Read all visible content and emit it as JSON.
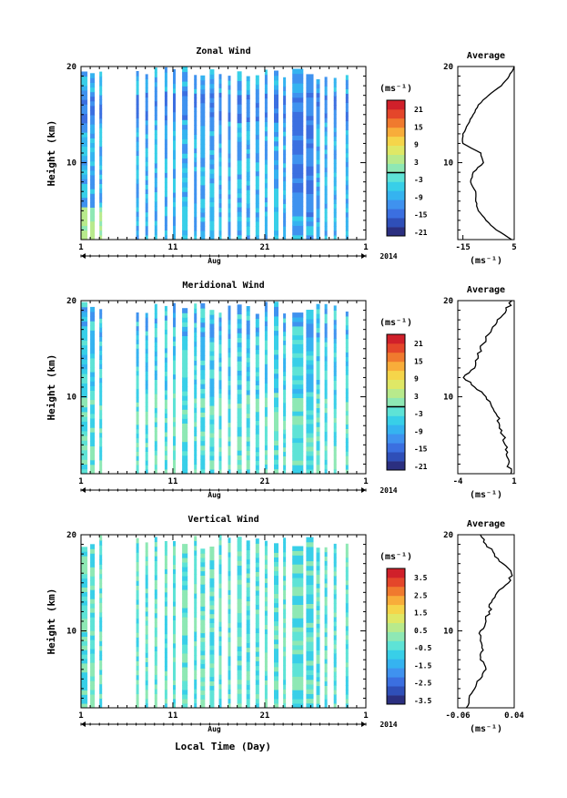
{
  "colorscale": [
    "#2b2f80",
    "#2f4fb8",
    "#3b6fe0",
    "#3f92ef",
    "#35b3f0",
    "#38cfe8",
    "#5ee3d6",
    "#8ee8b4",
    "#b8ea8c",
    "#dfe866",
    "#f5d54a",
    "#f8ad3a",
    "#f07a2e",
    "#e4462a",
    "#d0202a"
  ],
  "x_axis": {
    "ticks": [
      "1",
      "11",
      "21",
      "1"
    ],
    "month": "Aug",
    "year": "2014",
    "xlabel": "Local Time (Day)",
    "day_range": [
      1,
      32
    ]
  },
  "panels": [
    {
      "title": "Zonal Wind",
      "ylabel": "Height (km)",
      "yticks": [
        "20",
        "10"
      ],
      "ylim": [
        2,
        20
      ],
      "colorbar": {
        "unit": "(ms⁻¹)",
        "labels": [
          "21",
          "15",
          "9",
          "3",
          "-3",
          "-9",
          "-15",
          "-21"
        ],
        "zero_line": true
      },
      "average": {
        "title": "Average",
        "unit": "(ms⁻¹)",
        "xticks": [
          "-15",
          "5"
        ],
        "xlim": [
          -17,
          5
        ]
      }
    },
    {
      "title": "Meridional Wind",
      "ylabel": "Height (km)",
      "yticks": [
        "20",
        "10"
      ],
      "ylim": [
        2,
        20
      ],
      "colorbar": {
        "unit": "(ms⁻¹)",
        "labels": [
          "21",
          "15",
          "9",
          "3",
          "-3",
          "-9",
          "-15",
          "-21"
        ],
        "zero_line": true
      },
      "average": {
        "title": "Average",
        "unit": "(ms⁻¹)",
        "xticks": [
          "-4",
          "1"
        ],
        "xlim": [
          -4,
          1
        ]
      }
    },
    {
      "title": "Vertical Wind",
      "ylabel": "Height (km)",
      "yticks": [
        "20",
        "10"
      ],
      "ylim": [
        2,
        20
      ],
      "colorbar": {
        "unit": "(ms⁻¹)",
        "labels": [
          "3.5",
          "2.5",
          "1.5",
          "0.5",
          "-0.5",
          "-1.5",
          "-2.5",
          "-3.5"
        ],
        "zero_line": false
      },
      "average": {
        "title": "Average",
        "unit": "(ms⁻¹)",
        "xticks": [
          "-0.06",
          "0.04"
        ],
        "xlim": [
          -0.06,
          0.04
        ]
      }
    }
  ],
  "chart_data": [
    {
      "type": "heatmap",
      "title": "Zonal Wind",
      "ylabel": "Height (km)",
      "xlabel": "Local Time (Day)",
      "x_unit": "day of Aug 2014",
      "ylim": [
        2,
        20
      ],
      "color_range": [
        -21,
        21
      ],
      "data_columns_days": [
        [
          1.0,
          1.7
        ],
        [
          2.0,
          2.5
        ],
        [
          3.0,
          3.3
        ],
        [
          7.0,
          7.3
        ],
        [
          8.0,
          8.3
        ],
        [
          9.0,
          9.3
        ],
        [
          10.1,
          10.4
        ],
        [
          11.0,
          11.3
        ],
        [
          12.0,
          12.6
        ],
        [
          13.3,
          13.6
        ],
        [
          14.0,
          14.5
        ],
        [
          15.0,
          15.5
        ],
        [
          16.0,
          16.3
        ],
        [
          17.0,
          17.3
        ],
        [
          18.0,
          18.5
        ],
        [
          19.0,
          19.4
        ],
        [
          20.0,
          20.4
        ],
        [
          21.0,
          21.3
        ],
        [
          22.0,
          22.5
        ],
        [
          23.0,
          23.3
        ],
        [
          24.0,
          25.2
        ],
        [
          25.5,
          26.3
        ],
        [
          26.6,
          27.0
        ],
        [
          27.5,
          27.8
        ],
        [
          28.5,
          28.8
        ],
        [
          29.8,
          30.1
        ]
      ],
      "average_profile": {
        "x": [
          4,
          -2,
          -6,
          -9,
          -10,
          -10,
          -12,
          -11,
          -7,
          -8,
          -15,
          -15,
          -13,
          -11,
          -9,
          -5,
          0,
          3,
          5
        ],
        "y": [
          2,
          3,
          4,
          5,
          6,
          7,
          8,
          9,
          10,
          11,
          12,
          13,
          14,
          15,
          16,
          17,
          18,
          19,
          20
        ],
        "xlim": [
          -17,
          5
        ],
        "xticks": [
          -15,
          5
        ]
      }
    },
    {
      "type": "heatmap",
      "title": "Meridional Wind",
      "ylabel": "Height (km)",
      "xlabel": "Local Time (Day)",
      "x_unit": "day of Aug 2014",
      "ylim": [
        2,
        20
      ],
      "color_range": [
        -21,
        21
      ],
      "data_columns_days": [
        [
          1.0,
          1.7
        ],
        [
          2.0,
          2.5
        ],
        [
          3.0,
          3.3
        ],
        [
          7.0,
          7.3
        ],
        [
          8.0,
          8.3
        ],
        [
          9.0,
          9.3
        ],
        [
          10.1,
          10.4
        ],
        [
          11.0,
          11.3
        ],
        [
          12.0,
          12.6
        ],
        [
          13.3,
          13.6
        ],
        [
          14.0,
          14.5
        ],
        [
          15.0,
          15.5
        ],
        [
          16.0,
          16.3
        ],
        [
          17.0,
          17.3
        ],
        [
          18.0,
          18.5
        ],
        [
          19.0,
          19.4
        ],
        [
          20.0,
          20.4
        ],
        [
          21.0,
          21.3
        ],
        [
          22.0,
          22.5
        ],
        [
          23.0,
          23.3
        ],
        [
          24.0,
          25.2
        ],
        [
          25.5,
          26.3
        ],
        [
          26.6,
          27.0
        ],
        [
          27.5,
          27.8
        ],
        [
          28.5,
          28.8
        ],
        [
          29.8,
          30.1
        ]
      ],
      "average_profile": {
        "x": [
          0.7,
          0.5,
          0.3,
          0.2,
          0.0,
          -0.3,
          -0.5,
          -1.0,
          -1.5,
          -2.5,
          -3.5,
          -2.5,
          -2.2,
          -2.0,
          -1.5,
          -1.0,
          -0.5,
          0.3,
          0.8
        ],
        "y": [
          2,
          3,
          4,
          5,
          6,
          7,
          8,
          9,
          10,
          11,
          12,
          13,
          14,
          15,
          16,
          17,
          18,
          19,
          20
        ],
        "xlim": [
          -4,
          1
        ],
        "xticks": [
          -4,
          1
        ]
      }
    },
    {
      "type": "heatmap",
      "title": "Vertical Wind",
      "ylabel": "Height (km)",
      "xlabel": "Local Time (Day)",
      "x_unit": "day of Aug 2014",
      "ylim": [
        2,
        20
      ],
      "color_range": [
        -3.5,
        3.5
      ],
      "data_columns_days": [
        [
          1.0,
          1.7
        ],
        [
          2.0,
          2.5
        ],
        [
          3.0,
          3.3
        ],
        [
          7.0,
          7.3
        ],
        [
          8.0,
          8.3
        ],
        [
          9.0,
          9.3
        ],
        [
          10.1,
          10.4
        ],
        [
          11.0,
          11.3
        ],
        [
          12.0,
          12.6
        ],
        [
          13.3,
          13.6
        ],
        [
          14.0,
          14.5
        ],
        [
          15.0,
          15.5
        ],
        [
          16.0,
          16.3
        ],
        [
          17.0,
          17.3
        ],
        [
          18.0,
          18.5
        ],
        [
          19.0,
          19.4
        ],
        [
          20.0,
          20.4
        ],
        [
          21.0,
          21.3
        ],
        [
          22.0,
          22.5
        ],
        [
          23.0,
          23.3
        ],
        [
          24.0,
          25.2
        ],
        [
          25.5,
          26.3
        ],
        [
          26.6,
          27.0
        ],
        [
          27.5,
          27.8
        ],
        [
          28.5,
          28.8
        ],
        [
          29.8,
          30.1
        ]
      ],
      "average_profile": {
        "x": [
          -0.045,
          -0.04,
          -0.03,
          -0.02,
          -0.01,
          -0.02,
          -0.015,
          -0.02,
          -0.02,
          -0.01,
          -0.005,
          0.0,
          0.01,
          0.03,
          0.035,
          0.02,
          0.005,
          -0.01,
          -0.02
        ],
        "y": [
          2,
          3,
          4,
          5,
          6,
          7,
          8,
          9,
          10,
          11,
          12,
          13,
          14,
          15,
          16,
          17,
          18,
          19,
          20
        ],
        "xlim": [
          -0.06,
          0.04
        ],
        "xticks": [
          -0.06,
          0.04
        ]
      }
    }
  ]
}
